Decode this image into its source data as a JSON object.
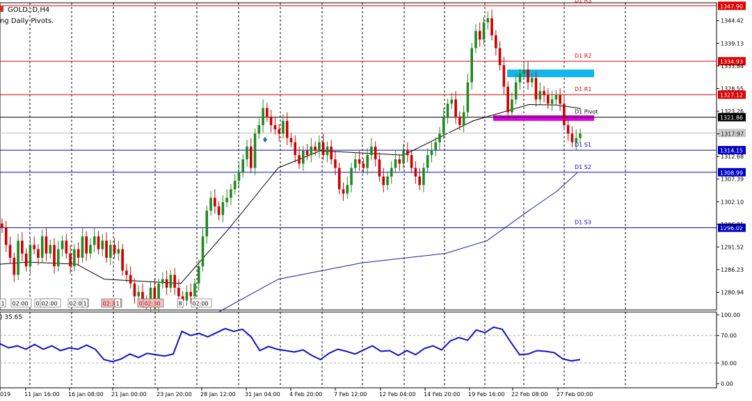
{
  "chart_header": {
    "symbol_timeframe": "GOLD.:D,H4",
    "indicator_name": "ng Daily Pivots."
  },
  "oscillator": {
    "label": ") 35.65",
    "ticks": [
      "100.00",
      "70.00",
      "30.00",
      "0.00"
    ]
  },
  "colors": {
    "resistance": "#e00000",
    "support": "#0000c8",
    "pivot": "#000000",
    "candle_up": "#1f8a1f",
    "candle_down": "#cc0000",
    "ma_short": "#000000",
    "ma_long": "#1a1aa0",
    "oscillator_line": "#1010cc",
    "zone_supply": "#13b5ea",
    "zone_pivot": "#e000e0",
    "price_tag_red_bg": "#e00000",
    "price_tag_blue_bg": "#0000c8"
  },
  "price_axis_ticks": [
    "1344.42",
    "1339.13",
    "1333.84",
    "1328.55",
    "1323.26",
    "1317.97",
    "1312.68",
    "1307.39",
    "1302.10",
    "1296.81",
    "1291.52",
    "1286.23",
    "1280.94"
  ],
  "current_price_tag": "1318.17",
  "time_axis_labels": [
    "019",
    "11 Jan 16:00",
    "16 Jan 08:00",
    "21 Jan 00:00",
    "23 Jan 20:00",
    "28 Jan 12:00",
    "31 Jan 04:00",
    "4 Feb 20:00",
    "7 Feb 12:00",
    "12 Feb 04:00",
    "14 Feb 20:00",
    "19 Feb 16:00",
    "22 Feb 08:00",
    "27 Feb 00:00"
  ],
  "session_markers": [
    "1",
    "02:00",
    "02:00",
    "02:00",
    "02:01",
    "1",
    "02:30",
    "1",
    "01:30",
    "02:30",
    "8",
    "02:00"
  ],
  "chart_data": {
    "type": "candlestick",
    "symbol": "GOLD",
    "timeframe": "H4",
    "y_range": [
      1276.8,
      1348.6
    ],
    "pivot_levels": [
      {
        "name": "D1 R3",
        "price": 1347.9
      },
      {
        "name": "D1 R2",
        "price": 1334.93
      },
      {
        "name": "D1 R1",
        "price": 1327.12
      },
      {
        "name": "D1 Pivot",
        "price": 1321.86
      },
      {
        "name": "D1 S1",
        "price": 1314.15
      },
      {
        "name": "D1 S2",
        "price": 1308.99
      },
      {
        "name": "D1 S3",
        "price": 1296.02
      }
    ],
    "zones": [
      {
        "type": "supply",
        "low": 1331.2,
        "high": 1333.0
      },
      {
        "type": "pivot",
        "low": 1321.0,
        "high": 1322.3
      }
    ],
    "closes": [
      1296,
      1292,
      1289,
      1285,
      1293,
      1290,
      1287,
      1292,
      1291,
      1289,
      1294,
      1290,
      1292,
      1287,
      1291,
      1293,
      1290,
      1287,
      1291,
      1289,
      1294,
      1290,
      1292,
      1294,
      1291,
      1293,
      1289,
      1292,
      1290,
      1291,
      1286,
      1285,
      1283,
      1280,
      1281,
      1279,
      1278,
      1282,
      1278,
      1283,
      1284,
      1282,
      1285,
      1282,
      1280,
      1279,
      1281,
      1280,
      1283,
      1287,
      1294,
      1300,
      1303,
      1301,
      1299,
      1302,
      1303,
      1305,
      1307,
      1309,
      1312,
      1315,
      1310,
      1318,
      1320,
      1324,
      1322,
      1320,
      1319,
      1318,
      1321,
      1317,
      1316,
      1313,
      1311,
      1314,
      1313,
      1315,
      1314,
      1316,
      1313,
      1315,
      1312,
      1310,
      1305,
      1304,
      1306,
      1310,
      1312,
      1311,
      1310,
      1313,
      1315,
      1312,
      1308,
      1306,
      1308,
      1310,
      1312,
      1311,
      1314,
      1313,
      1310,
      1308,
      1306,
      1310,
      1313,
      1314,
      1316,
      1318,
      1322,
      1325,
      1326,
      1322,
      1320,
      1323,
      1330,
      1338,
      1342,
      1340,
      1344,
      1345,
      1341,
      1338,
      1334,
      1329,
      1323,
      1326,
      1330,
      1332,
      1333,
      1330,
      1331,
      1326,
      1328,
      1327,
      1325,
      1326,
      1327,
      1325,
      1320,
      1318,
      1316,
      1317,
      1318
    ],
    "ma_short_anchor_values": [
      1287.5,
      1288,
      1287.5,
      1284,
      1283,
      1296,
      1310,
      1314,
      1313.5,
      1313,
      1321,
      1324.8,
      1324.7,
      1323.9
    ],
    "ma_long_anchor_values": [
      1276.4,
      1284,
      1287.8,
      1290,
      1293,
      1300,
      1304.5,
      1308.9
    ],
    "oscillator_values": [
      58,
      52,
      55,
      50,
      57,
      50,
      55,
      48,
      52,
      50,
      56,
      50,
      35,
      32,
      36,
      43,
      38,
      44,
      42,
      40,
      43,
      76,
      70,
      73,
      68,
      74,
      80,
      76,
      79,
      68,
      48,
      54,
      50,
      48,
      46,
      49,
      41,
      35,
      44,
      50,
      47,
      43,
      49,
      55,
      47,
      48,
      41,
      48,
      42,
      51,
      55,
      49,
      62,
      67,
      63,
      78,
      74,
      82,
      79,
      60,
      42,
      43,
      48,
      47,
      45,
      36,
      33,
      35
    ]
  }
}
